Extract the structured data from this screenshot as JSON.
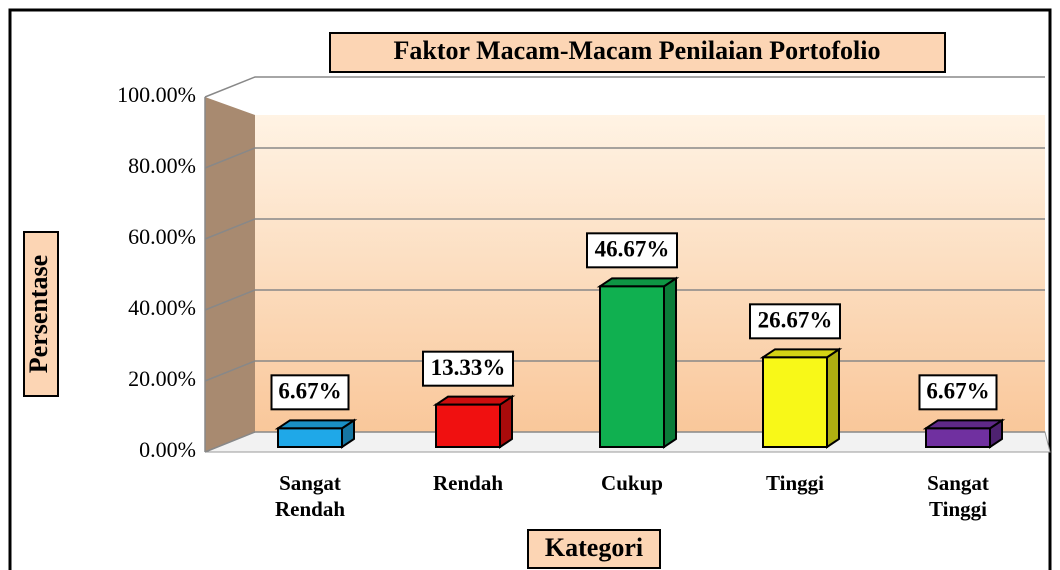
{
  "chart_data": {
    "type": "bar",
    "title": "Faktor Macam-Macam Penilaian Portofolio",
    "ylabel": "Persentase",
    "xlabel": "Kategori",
    "categories": [
      "Sangat Rendah",
      "Rendah",
      "Cukup",
      "Tinggi",
      "Sangat Tinggi"
    ],
    "values": [
      6.67,
      13.33,
      46.67,
      26.67,
      6.67
    ],
    "value_labels": [
      "6.67%",
      "13.33%",
      "46.67%",
      "26.67%",
      "6.67%"
    ],
    "colors": [
      "#1fa8e8",
      "#f01010",
      "#10b050",
      "#f8f818",
      "#7030a0"
    ],
    "ylim": [
      0,
      100
    ],
    "yticks": [
      {
        "value": 0,
        "label": "0.00%"
      },
      {
        "value": 20,
        "label": "20.00%"
      },
      {
        "value": 40,
        "label": "40.00%"
      },
      {
        "value": 60,
        "label": "60.00%"
      },
      {
        "value": 80,
        "label": "80.00%"
      },
      {
        "value": 100,
        "label": "100.00%"
      }
    ],
    "grid": true
  }
}
